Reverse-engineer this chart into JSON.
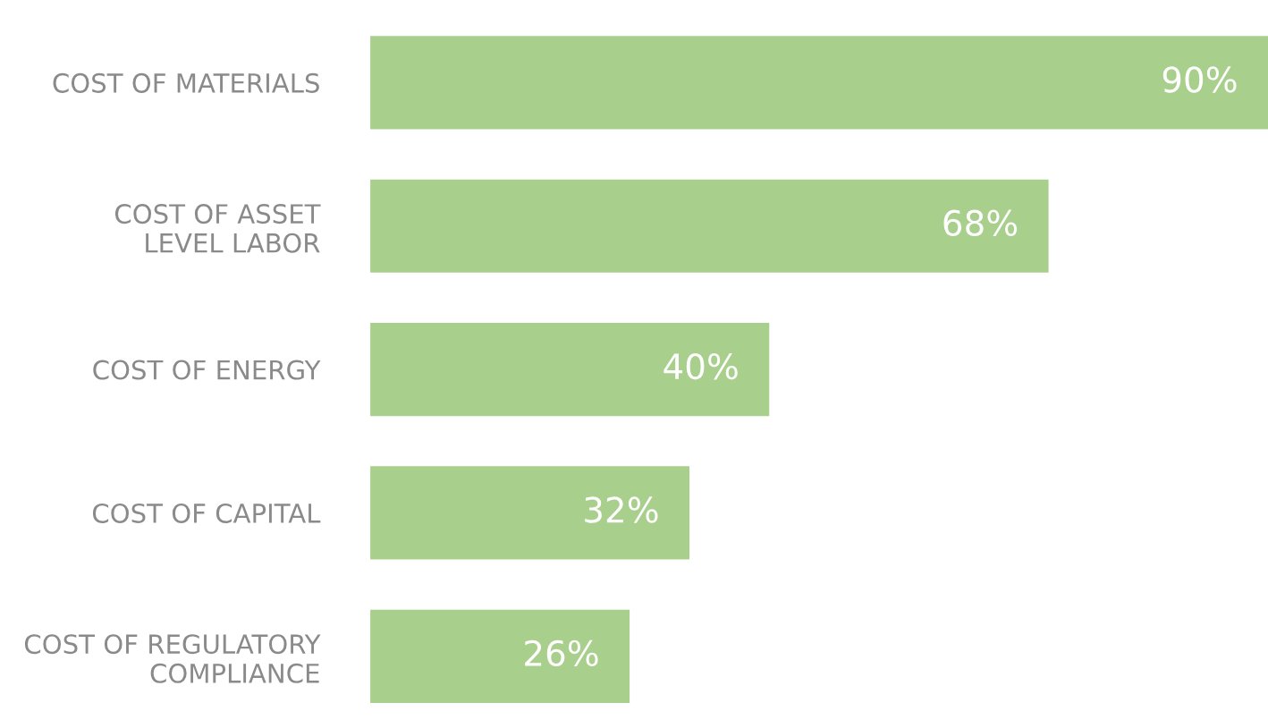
{
  "chart_data": {
    "type": "bar",
    "orientation": "horizontal",
    "categories": [
      "COST OF MATERIALS",
      "COST OF ASSET\nLEVEL LABOR",
      "COST OF ENERGY",
      "COST OF CAPITAL",
      "COST OF REGULATORY\nCOMPLIANCE"
    ],
    "values": [
      90,
      68,
      40,
      32,
      26
    ],
    "value_labels": [
      "90%",
      "68%",
      "40%",
      "32%",
      "26%"
    ],
    "color": "#a9cf8d",
    "grid": false,
    "legend": false,
    "tick_labels": "y"
  }
}
